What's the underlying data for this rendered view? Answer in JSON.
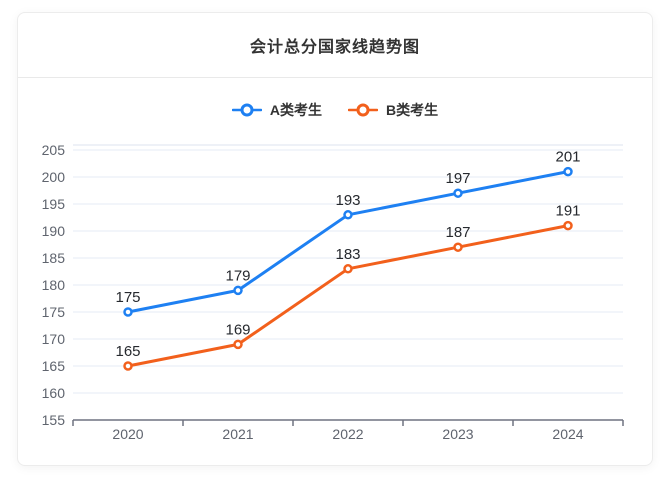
{
  "header": {
    "title": "会计总分国家线趋势图"
  },
  "chart_data": {
    "type": "line",
    "title": "会计总分国家线趋势图",
    "categories": [
      "2020",
      "2021",
      "2022",
      "2023",
      "2024"
    ],
    "series": [
      {
        "name": "A类考生",
        "color": "#1e80f2",
        "values": [
          175,
          179,
          193,
          197,
          201
        ]
      },
      {
        "name": "B类考生",
        "color": "#f2601c",
        "values": [
          165,
          169,
          183,
          187,
          191
        ]
      }
    ],
    "y_ticks": [
      155,
      160,
      165,
      170,
      175,
      180,
      185,
      190,
      195,
      200,
      205
    ],
    "ylim": [
      155,
      205
    ],
    "xlabel": "",
    "ylabel": "",
    "grid": true,
    "legend_position": "top",
    "data_labels": true,
    "marker": "hollow-circle"
  },
  "style_colors": {
    "grid_line": "#e6ebf4",
    "grid_top_border": "#dce3ef",
    "axis_line": "#6f7280",
    "axis_text": "#5f646e",
    "data_label_text": "#26292e"
  }
}
